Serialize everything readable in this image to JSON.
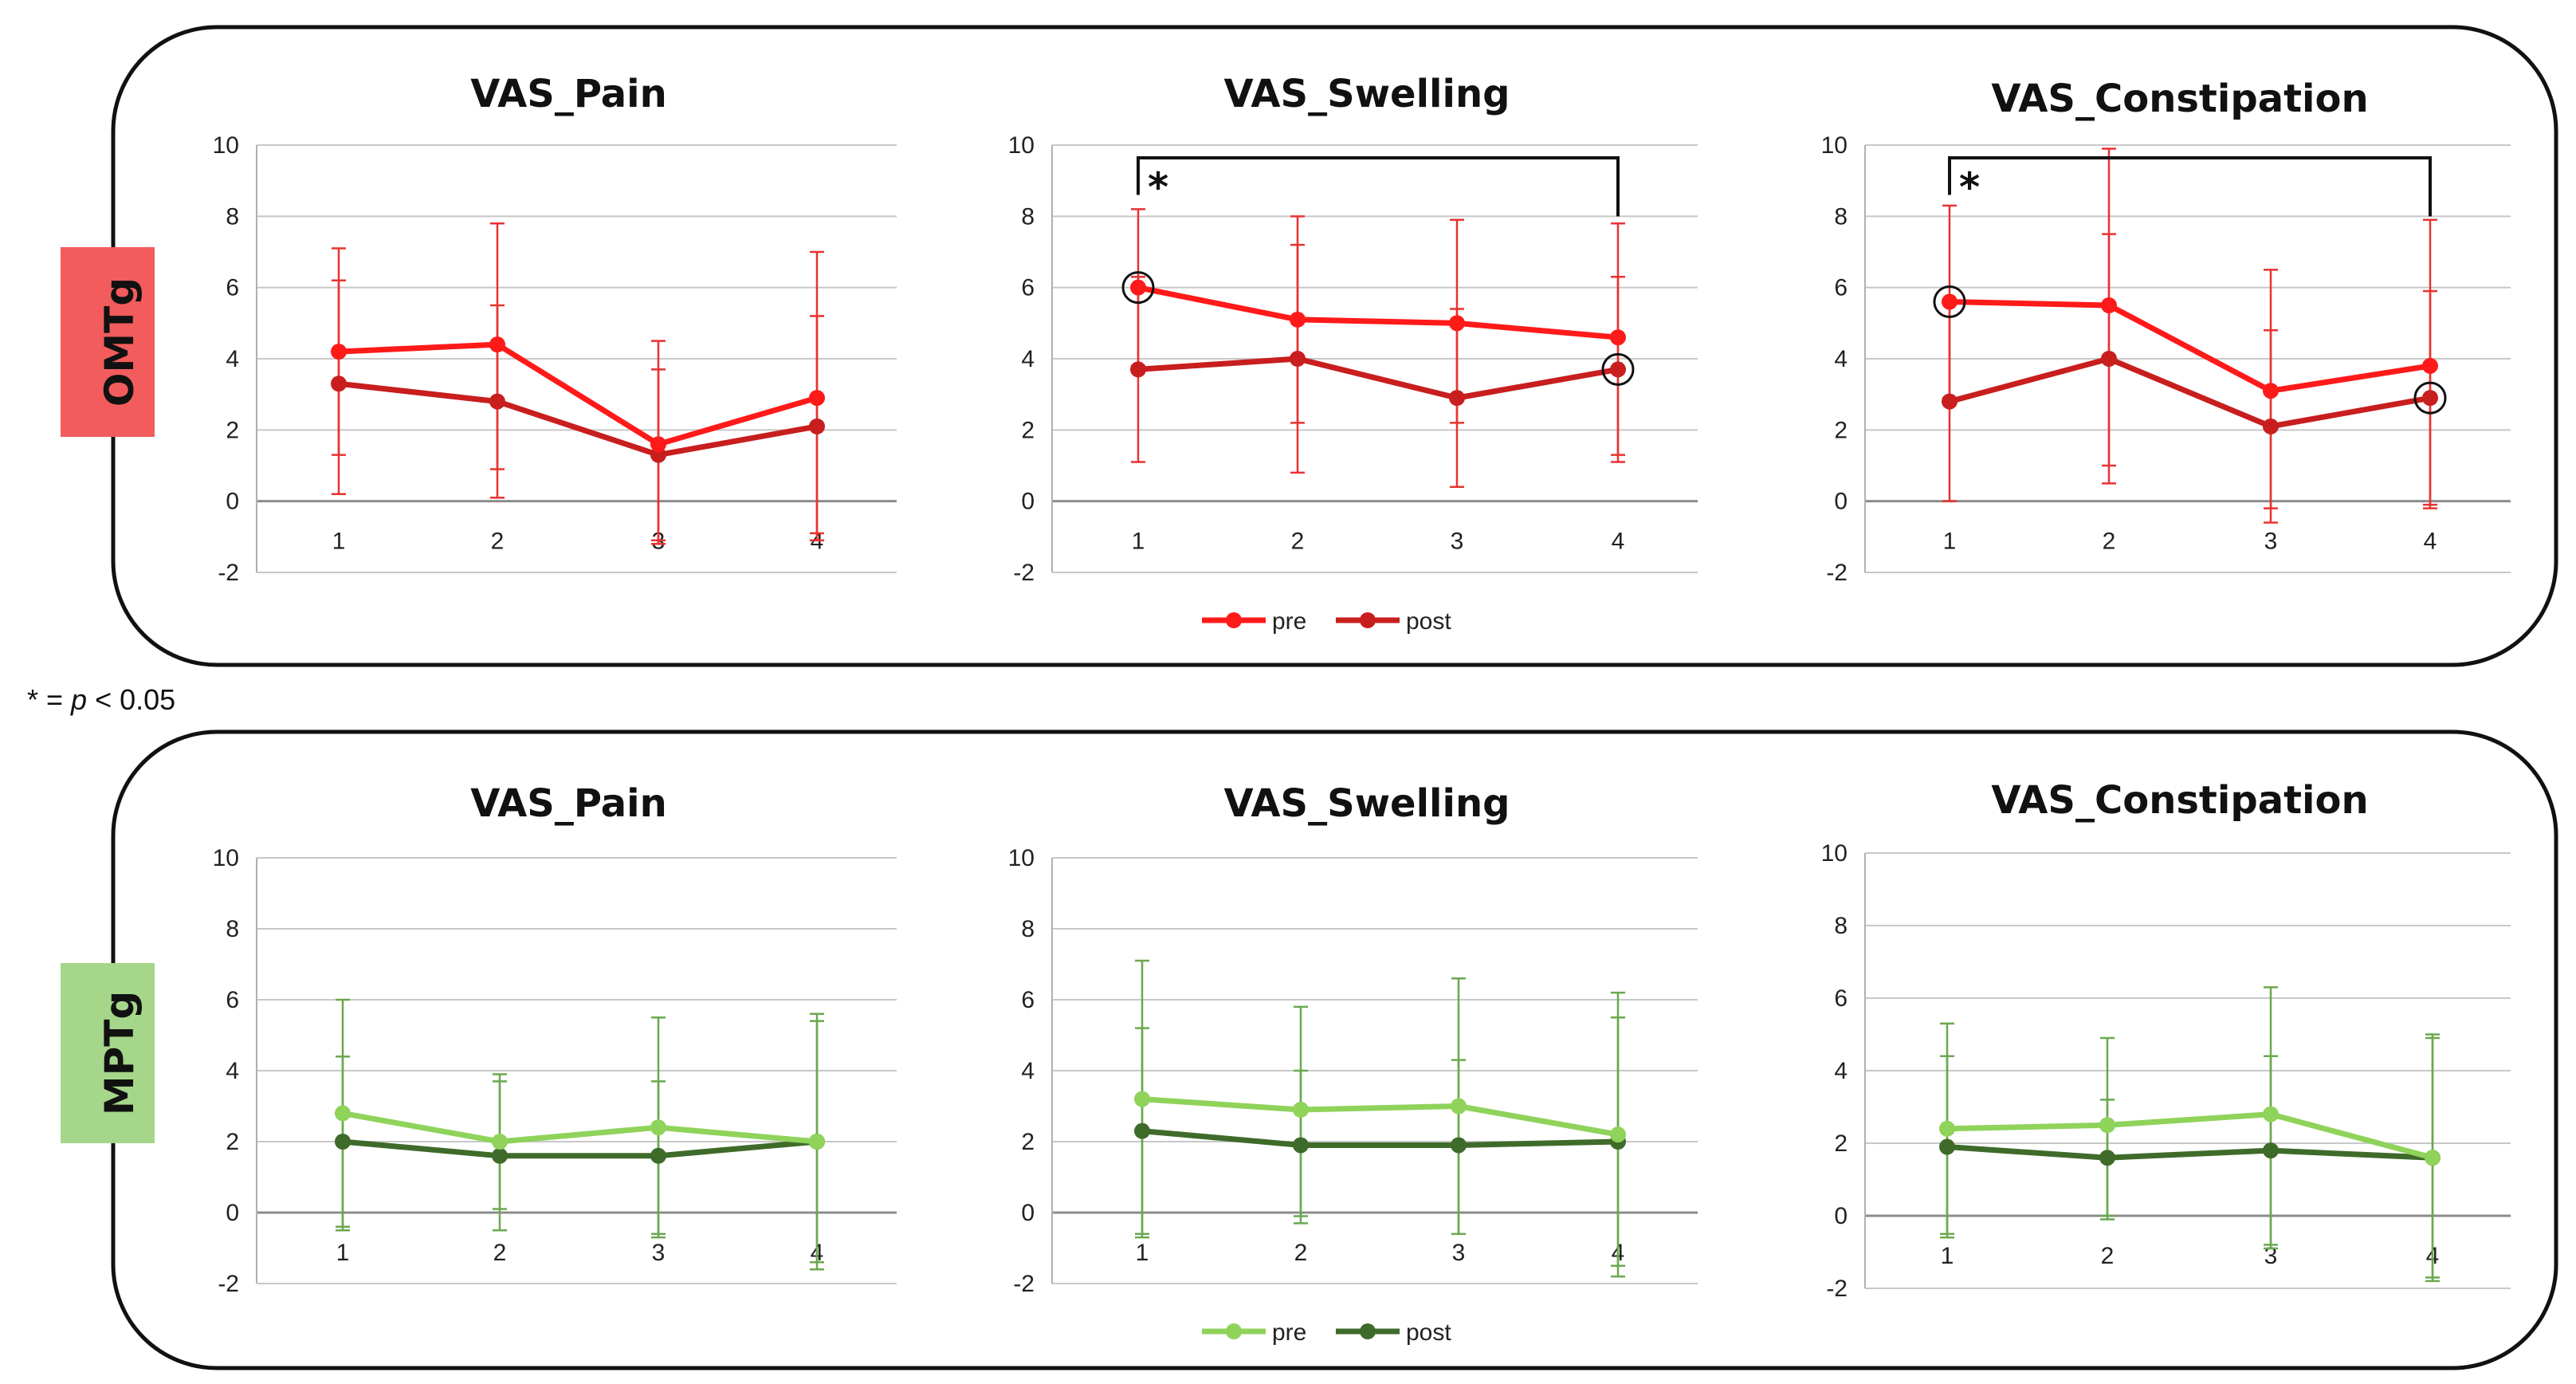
{
  "note": {
    "star": "*",
    "eq": " = ",
    "p": "p",
    "rest": " < 0.05"
  },
  "groups": [
    {
      "label": "OMTg",
      "label_color": "#f25c5c",
      "pre_color": "#ff1a1a",
      "post_color": "#c81e1e",
      "err_color": "#e83232",
      "legend": {
        "pre": "pre",
        "post": "post"
      }
    },
    {
      "label": "MPTg",
      "label_color": "#a6d68a",
      "pre_color": "#8fd35a",
      "post_color": "#3f6b2a",
      "err_color": "#6aa84f",
      "legend": {
        "pre": "pre",
        "post": "post"
      }
    }
  ],
  "chart_data": [
    {
      "group": "OMTg",
      "type": "line",
      "title": "VAS_Pain",
      "categories": [
        "1",
        "2",
        "3",
        "4"
      ],
      "ylim": [
        -2,
        10
      ],
      "yticks": [
        "-2",
        "0",
        "2",
        "4",
        "6",
        "8",
        "10"
      ],
      "series": [
        {
          "name": "pre",
          "values": [
            4.2,
            4.4,
            1.6,
            2.9
          ],
          "err_low": [
            1.3,
            0.9,
            -1.2,
            -1.1
          ],
          "err_high": [
            7.1,
            7.8,
            4.5,
            7.0
          ]
        },
        {
          "name": "post",
          "values": [
            3.3,
            2.8,
            1.3,
            2.1
          ],
          "err_low": [
            0.2,
            0.1,
            -1.1,
            -0.9
          ],
          "err_high": [
            6.2,
            5.5,
            3.7,
            5.2
          ]
        }
      ],
      "marked": [],
      "bracket": null
    },
    {
      "group": "OMTg",
      "type": "line",
      "title": "VAS_Swelling",
      "categories": [
        "1",
        "2",
        "3",
        "4"
      ],
      "ylim": [
        -2,
        10
      ],
      "yticks": [
        "-2",
        "0",
        "2",
        "4",
        "6",
        "8",
        "10"
      ],
      "series": [
        {
          "name": "pre",
          "values": [
            6.0,
            5.1,
            5.0,
            4.6
          ],
          "err_low": [
            3.8,
            2.2,
            2.2,
            1.3
          ],
          "err_high": [
            8.2,
            8.0,
            7.9,
            7.8
          ]
        },
        {
          "name": "post",
          "values": [
            3.7,
            4.0,
            2.9,
            3.7
          ],
          "err_low": [
            1.1,
            0.8,
            0.4,
            1.1
          ],
          "err_high": [
            6.3,
            7.2,
            5.4,
            6.3
          ]
        }
      ],
      "marked": [
        {
          "series": "pre",
          "index": 0
        },
        {
          "series": "post",
          "index": 3
        }
      ],
      "bracket": {
        "from": 0,
        "to": 3,
        "label": "*"
      }
    },
    {
      "group": "OMTg",
      "type": "line",
      "title": "VAS_Constipation",
      "categories": [
        "1",
        "2",
        "3",
        "4"
      ],
      "ylim": [
        -2,
        10
      ],
      "yticks": [
        "-2",
        "0",
        "2",
        "4",
        "6",
        "8",
        "10"
      ],
      "series": [
        {
          "name": "pre",
          "values": [
            5.6,
            5.5,
            3.1,
            3.8
          ],
          "err_low": [
            2.9,
            1.0,
            -0.2,
            -0.2
          ],
          "err_high": [
            8.3,
            9.9,
            6.5,
            7.9
          ]
        },
        {
          "name": "post",
          "values": [
            2.8,
            4.0,
            2.1,
            2.9
          ],
          "err_low": [
            0.0,
            0.5,
            -0.6,
            -0.1
          ],
          "err_high": [
            5.6,
            7.5,
            4.8,
            5.9
          ]
        }
      ],
      "marked": [
        {
          "series": "pre",
          "index": 0
        },
        {
          "series": "post",
          "index": 3
        }
      ],
      "bracket": {
        "from": 0,
        "to": 3,
        "label": "*"
      }
    },
    {
      "group": "MPTg",
      "type": "line",
      "title": "VAS_Pain",
      "categories": [
        "1",
        "2",
        "3",
        "4"
      ],
      "ylim": [
        -2,
        10
      ],
      "yticks": [
        "-2",
        "0",
        "2",
        "4",
        "6",
        "8",
        "10"
      ],
      "series": [
        {
          "name": "pre",
          "values": [
            2.8,
            2.0,
            2.4,
            2.0
          ],
          "err_low": [
            -0.4,
            0.1,
            -0.7,
            -1.4
          ],
          "err_high": [
            6.0,
            3.9,
            5.5,
            5.4
          ]
        },
        {
          "name": "post",
          "values": [
            2.0,
            1.6,
            1.6,
            2.0
          ],
          "err_low": [
            -0.5,
            -0.5,
            -0.6,
            -1.6
          ],
          "err_high": [
            4.4,
            3.7,
            3.7,
            5.6
          ]
        }
      ],
      "marked": [],
      "bracket": null
    },
    {
      "group": "MPTg",
      "type": "line",
      "title": "VAS_Swelling",
      "categories": [
        "1",
        "2",
        "3",
        "4"
      ],
      "ylim": [
        -2,
        10
      ],
      "yticks": [
        "-2",
        "0",
        "2",
        "4",
        "6",
        "8",
        "10"
      ],
      "series": [
        {
          "name": "pre",
          "values": [
            3.2,
            2.9,
            3.0,
            2.2
          ],
          "err_low": [
            -0.7,
            -0.1,
            -0.6,
            -1.8
          ],
          "err_high": [
            7.1,
            5.8,
            6.6,
            6.2
          ]
        },
        {
          "name": "post",
          "values": [
            2.3,
            1.9,
            1.9,
            2.0
          ],
          "err_low": [
            -0.6,
            -0.3,
            -0.6,
            -1.5
          ],
          "err_high": [
            5.2,
            4.0,
            4.3,
            5.5
          ]
        }
      ],
      "marked": [],
      "bracket": null
    },
    {
      "group": "MPTg",
      "type": "line",
      "title": "VAS_Constipation",
      "categories": [
        "1",
        "2",
        "3",
        "4"
      ],
      "ylim": [
        -2,
        10
      ],
      "yticks": [
        "-2",
        "0",
        "2",
        "4",
        "6",
        "8",
        "10"
      ],
      "series": [
        {
          "name": "pre",
          "values": [
            2.4,
            2.5,
            2.8,
            1.6
          ],
          "err_low": [
            -0.5,
            0.0,
            -0.8,
            -1.7
          ],
          "err_high": [
            5.3,
            4.9,
            6.3,
            4.9
          ]
        },
        {
          "name": "post",
          "values": [
            1.9,
            1.6,
            1.8,
            1.6
          ],
          "err_low": [
            -0.6,
            -0.1,
            -0.9,
            -1.8
          ],
          "err_high": [
            4.4,
            3.2,
            4.4,
            5.0
          ]
        }
      ],
      "marked": [],
      "bracket": null
    }
  ]
}
